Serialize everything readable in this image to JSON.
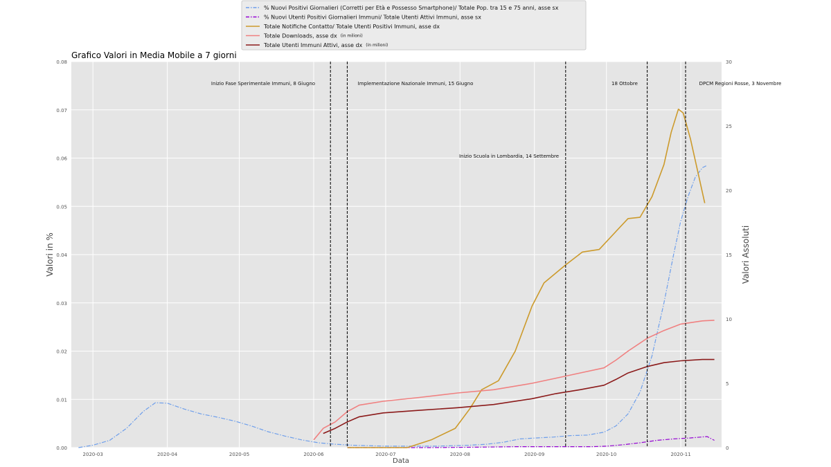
{
  "chart_data": {
    "type": "line",
    "title": "Grafico Valori in Media Mobile a 7 giorni",
    "xlabel": "Data",
    "ylabel_left": "Valori in %",
    "ylabel_right": "Valori Assoluti",
    "xlim": [
      "2020-02-21",
      "2020-11-18"
    ],
    "ylim_left": [
      0,
      0.08
    ],
    "ylim_right": [
      0,
      30
    ],
    "x_ticks": [
      "2020-03",
      "2020-04",
      "2020-05",
      "2020-06",
      "2020-07",
      "2020-08",
      "2020-09",
      "2020-10",
      "2020-11"
    ],
    "y_ticks_left": [
      "0.00",
      "0.01",
      "0.02",
      "0.03",
      "0.04",
      "0.05",
      "0.06",
      "0.07",
      "0.08"
    ],
    "y_ticks_right": [
      "0",
      "5",
      "10",
      "15",
      "20",
      "25",
      "30"
    ],
    "grid": true,
    "legend_position": "top-center",
    "vlines": [
      {
        "date": "2020-06-08",
        "label": "Inizio Fase Sperimentale Immuni, 8 Giugno"
      },
      {
        "date": "2020-06-15",
        "label": "Implementazione Nazionale Immuni, 15 Giugno"
      },
      {
        "date": "2020-09-14",
        "label": "Inizio Scuola in Lombardia, 14 Settembre"
      },
      {
        "date": "2020-10-18",
        "label": "18 Ottobre"
      },
      {
        "date": "2020-11-03",
        "label": "DPCM Regioni Rosse, 3 Novembre"
      }
    ],
    "series": [
      {
        "name": "% Nuovi Positivi Giornalieri (Corretti per Età e Possesso Smartphone)/ Totale Pop. tra 15 e 75 anni, asse sx",
        "axis": "left",
        "style": "dashdot",
        "color": "#6d9eeb",
        "points": [
          [
            "2020-02-24",
            0.0
          ],
          [
            "2020-03-01",
            0.0005
          ],
          [
            "2020-03-08",
            0.0015
          ],
          [
            "2020-03-15",
            0.004
          ],
          [
            "2020-03-22",
            0.0075
          ],
          [
            "2020-03-27",
            0.0093
          ],
          [
            "2020-04-01",
            0.0092
          ],
          [
            "2020-04-08",
            0.008
          ],
          [
            "2020-04-15",
            0.007
          ],
          [
            "2020-04-22",
            0.0063
          ],
          [
            "2020-04-29",
            0.0055
          ],
          [
            "2020-05-06",
            0.0045
          ],
          [
            "2020-05-13",
            0.0033
          ],
          [
            "2020-05-20",
            0.0024
          ],
          [
            "2020-05-27",
            0.0016
          ],
          [
            "2020-06-03",
            0.001
          ],
          [
            "2020-06-10",
            0.0007
          ],
          [
            "2020-06-17",
            0.0005
          ],
          [
            "2020-06-24",
            0.0004
          ],
          [
            "2020-07-01",
            0.0003
          ],
          [
            "2020-07-08",
            0.0003
          ],
          [
            "2020-07-15",
            0.0003
          ],
          [
            "2020-07-22",
            0.0003
          ],
          [
            "2020-07-29",
            0.0004
          ],
          [
            "2020-08-05",
            0.0005
          ],
          [
            "2020-08-12",
            0.0007
          ],
          [
            "2020-08-19",
            0.0011
          ],
          [
            "2020-08-26",
            0.0018
          ],
          [
            "2020-09-02",
            0.002
          ],
          [
            "2020-09-09",
            0.0022
          ],
          [
            "2020-09-16",
            0.0025
          ],
          [
            "2020-09-23",
            0.0026
          ],
          [
            "2020-09-30",
            0.0032
          ],
          [
            "2020-10-05",
            0.0045
          ],
          [
            "2020-10-10",
            0.007
          ],
          [
            "2020-10-15",
            0.0115
          ],
          [
            "2020-10-20",
            0.019
          ],
          [
            "2020-10-25",
            0.03
          ],
          [
            "2020-10-29",
            0.04
          ],
          [
            "2020-11-01",
            0.047
          ],
          [
            "2020-11-04",
            0.052
          ],
          [
            "2020-11-07",
            0.056
          ],
          [
            "2020-11-10",
            0.058
          ],
          [
            "2020-11-12",
            0.0585
          ]
        ]
      },
      {
        "name": "% Nuovi Utenti Positivi Giornalieri Immuni/ Totale Utenti Attivi Immuni, asse sx",
        "axis": "left",
        "style": "dashdot",
        "color": "#9400d3",
        "points": [
          [
            "2020-06-15",
            0.0
          ],
          [
            "2020-07-01",
            0.0
          ],
          [
            "2020-07-20",
            0.0
          ],
          [
            "2020-08-10",
            0.0001
          ],
          [
            "2020-08-25",
            0.0002
          ],
          [
            "2020-09-10",
            0.0002
          ],
          [
            "2020-09-25",
            0.0002
          ],
          [
            "2020-10-01",
            0.0003
          ],
          [
            "2020-10-08",
            0.0006
          ],
          [
            "2020-10-15",
            0.001
          ],
          [
            "2020-10-22",
            0.0015
          ],
          [
            "2020-10-29",
            0.0018
          ],
          [
            "2020-11-05",
            0.002
          ],
          [
            "2020-11-12",
            0.0023
          ],
          [
            "2020-11-15",
            0.0015
          ]
        ]
      },
      {
        "name": "Totale Notifiche Contatto/ Totale Utenti Positivi Immuni, asse dx",
        "axis": "right",
        "style": "solid",
        "color": "#cc9a2b",
        "points": [
          [
            "2020-06-15",
            0.0
          ],
          [
            "2020-07-10",
            0.0
          ],
          [
            "2020-07-20",
            0.6
          ],
          [
            "2020-07-30",
            1.5
          ],
          [
            "2020-08-05",
            3.0
          ],
          [
            "2020-08-10",
            4.5
          ],
          [
            "2020-08-17",
            5.2
          ],
          [
            "2020-08-24",
            7.5
          ],
          [
            "2020-08-31",
            11.0
          ],
          [
            "2020-09-05",
            12.8
          ],
          [
            "2020-09-14",
            14.2
          ],
          [
            "2020-09-21",
            15.2
          ],
          [
            "2020-09-28",
            15.4
          ],
          [
            "2020-10-05",
            16.8
          ],
          [
            "2020-10-10",
            17.8
          ],
          [
            "2020-10-15",
            17.9
          ],
          [
            "2020-10-20",
            19.5
          ],
          [
            "2020-10-25",
            22.0
          ],
          [
            "2020-10-28",
            24.5
          ],
          [
            "2020-10-31",
            26.3
          ],
          [
            "2020-11-02",
            26.0
          ],
          [
            "2020-11-05",
            24.0
          ],
          [
            "2020-11-08",
            21.5
          ],
          [
            "2020-11-11",
            19.0
          ]
        ]
      },
      {
        "name": "Totale Downloads, asse dx",
        "legend_note": "(in milioni)",
        "axis": "right",
        "style": "solid",
        "color": "#f08080",
        "points": [
          [
            "2020-06-01",
            0.6
          ],
          [
            "2020-06-05",
            1.5
          ],
          [
            "2020-06-10",
            2.0
          ],
          [
            "2020-06-15",
            2.8
          ],
          [
            "2020-06-20",
            3.3
          ],
          [
            "2020-06-30",
            3.6
          ],
          [
            "2020-07-15",
            3.9
          ],
          [
            "2020-07-31",
            4.25
          ],
          [
            "2020-08-15",
            4.5
          ],
          [
            "2020-08-31",
            5.0
          ],
          [
            "2020-09-10",
            5.4
          ],
          [
            "2020-09-20",
            5.8
          ],
          [
            "2020-09-30",
            6.2
          ],
          [
            "2020-10-05",
            6.8
          ],
          [
            "2020-10-10",
            7.5
          ],
          [
            "2020-10-18",
            8.5
          ],
          [
            "2020-10-25",
            9.1
          ],
          [
            "2020-11-01",
            9.6
          ],
          [
            "2020-11-10",
            9.85
          ],
          [
            "2020-11-15",
            9.9
          ]
        ]
      },
      {
        "name": "Totale Utenti Immuni Attivi, asse dx",
        "legend_note": "(in milioni)",
        "axis": "right",
        "style": "solid",
        "color": "#8b1a1a",
        "points": [
          [
            "2020-06-05",
            1.1
          ],
          [
            "2020-06-10",
            1.5
          ],
          [
            "2020-06-15",
            2.0
          ],
          [
            "2020-06-20",
            2.4
          ],
          [
            "2020-06-30",
            2.7
          ],
          [
            "2020-07-15",
            2.9
          ],
          [
            "2020-07-31",
            3.1
          ],
          [
            "2020-08-15",
            3.35
          ],
          [
            "2020-08-31",
            3.8
          ],
          [
            "2020-09-10",
            4.2
          ],
          [
            "2020-09-20",
            4.5
          ],
          [
            "2020-09-30",
            4.85
          ],
          [
            "2020-10-05",
            5.3
          ],
          [
            "2020-10-10",
            5.8
          ],
          [
            "2020-10-18",
            6.3
          ],
          [
            "2020-10-25",
            6.6
          ],
          [
            "2020-11-01",
            6.75
          ],
          [
            "2020-11-10",
            6.85
          ],
          [
            "2020-11-15",
            6.85
          ]
        ]
      }
    ]
  }
}
